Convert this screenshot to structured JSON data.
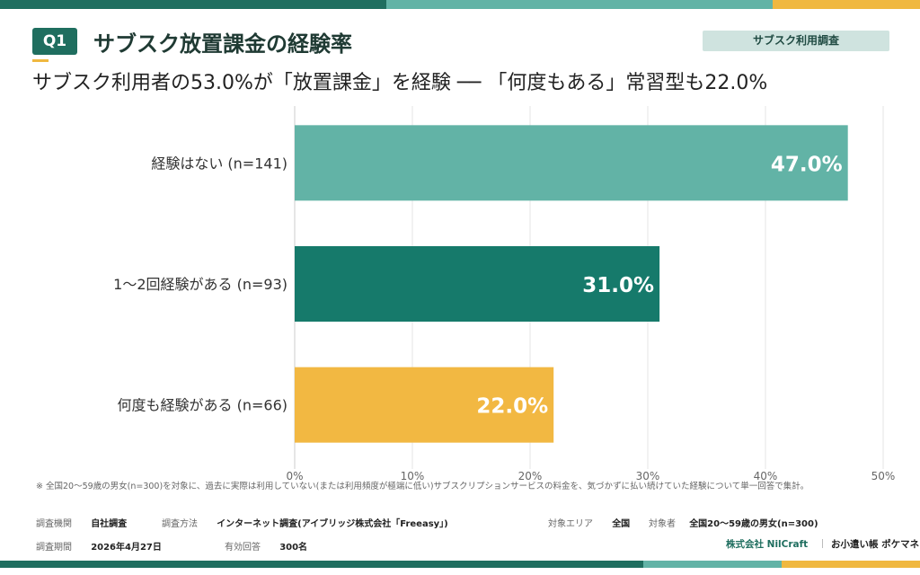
{
  "header": {
    "question_badge": "Q1",
    "title": "サブスク放置課金の経験率",
    "tag": "サブスク利用調査",
    "headline": "サブスク利用者の53.0%が「放置課金」を経験 ── 「何度もある」常習型も22.0%"
  },
  "chart_data": {
    "type": "bar",
    "orientation": "horizontal",
    "categories": [
      "経験はない (n=141)",
      "1〜2回経験がある (n=93)",
      "何度も経験がある (n=66)"
    ],
    "values": [
      47.0,
      31.0,
      22.0
    ],
    "data_labels": [
      "47.0%",
      "31.0%",
      "22.0%"
    ],
    "bar_colors": [
      "#62b3a6",
      "#167a6b",
      "#f2b842"
    ],
    "xlim": [
      0,
      50
    ],
    "xticks": [
      "0%",
      "10%",
      "20%",
      "30%",
      "40%",
      "50%"
    ],
    "grid": true
  },
  "footnote": "※ 全国20〜59歳の男女(n=300)を対象に、過去に実際は利用していない(または利用頻度が極端に低い)サブスクリプションサービスの料金を、気づかずに払い続けていた経験について単一回答で集計。",
  "meta": {
    "org_label": "調査機関",
    "org_value": "自社調査",
    "method_label": "調査方法",
    "method_value": "インターネット調査(アイブリッジ株式会社「Freeasy」)",
    "area_label": "対象エリア",
    "area_value": "全国",
    "target_label": "対象者",
    "target_value": "全国20〜59歳の男女(n=300)",
    "period_label": "調査期間",
    "period_value": "2026年4月27日",
    "responses_label": "有効回答",
    "responses_value": "300名"
  },
  "brands": {
    "company": "株式会社 NilCraft",
    "product": "お小遣い帳 ポケマネ"
  },
  "colors": {
    "dark_green": "#1f6e5f",
    "teal": "#62b3a6",
    "yellow": "#f0b840"
  }
}
